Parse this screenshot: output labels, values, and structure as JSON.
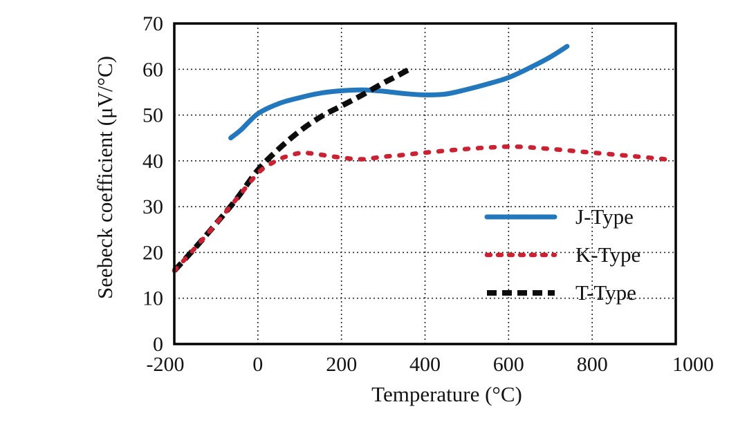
{
  "colors": {
    "background": "#ffffff",
    "frame": "#000000",
    "grid": "#222222",
    "text": "#131313",
    "j_type_blue": "#2377bd",
    "k_type_red": "#cb2233",
    "t_type_black": "#0d0d0d"
  },
  "chart_data": {
    "type": "line",
    "title": "",
    "xlabel": "Temperature (°C)",
    "ylabel": "Seebeck coefficient (μV/°C)",
    "xlim": [
      -200,
      1000
    ],
    "ylim": [
      0,
      70
    ],
    "x_ticks": [
      -200,
      0,
      200,
      400,
      600,
      800,
      1000
    ],
    "y_ticks": [
      0,
      10,
      20,
      30,
      40,
      50,
      60,
      70
    ],
    "grid": true,
    "grid_style": "dotted",
    "legend_position": "inside-right",
    "series": [
      {
        "name": "J-Type",
        "color": "#2377bd",
        "line_style": "solid",
        "points": [
          [
            -65,
            45
          ],
          [
            -40,
            46.8
          ],
          [
            0,
            50.3
          ],
          [
            50,
            52.5
          ],
          [
            100,
            53.8
          ],
          [
            150,
            54.8
          ],
          [
            200,
            55.3
          ],
          [
            250,
            55.5
          ],
          [
            300,
            55.2
          ],
          [
            350,
            54.7
          ],
          [
            400,
            54.4
          ],
          [
            450,
            54.6
          ],
          [
            500,
            55.6
          ],
          [
            550,
            56.8
          ],
          [
            600,
            58.2
          ],
          [
            650,
            60.3
          ],
          [
            700,
            62.7
          ],
          [
            740,
            65
          ]
        ]
      },
      {
        "name": "K-Type",
        "color": "#cb2233",
        "line_style": "dotted",
        "points": [
          [
            -200,
            16
          ],
          [
            -150,
            21
          ],
          [
            -100,
            26.3
          ],
          [
            -50,
            31.8
          ],
          [
            0,
            37.3
          ],
          [
            30,
            39.3
          ],
          [
            60,
            40.7
          ],
          [
            100,
            41.7
          ],
          [
            130,
            41.6
          ],
          [
            200,
            40.7
          ],
          [
            250,
            40.35
          ],
          [
            300,
            40.9
          ],
          [
            350,
            41.3
          ],
          [
            400,
            41.8
          ],
          [
            500,
            42.6
          ],
          [
            570,
            43
          ],
          [
            620,
            43.1
          ],
          [
            700,
            42.6
          ],
          [
            800,
            41.8
          ],
          [
            900,
            41
          ],
          [
            980,
            40.3
          ]
        ]
      },
      {
        "name": "T-Type",
        "color": "#0d0d0d",
        "line_style": "dashed",
        "points": [
          [
            -200,
            16
          ],
          [
            -150,
            21
          ],
          [
            -100,
            26.3
          ],
          [
            -50,
            31.8
          ],
          [
            0,
            38
          ],
          [
            50,
            42.6
          ],
          [
            100,
            46.5
          ],
          [
            150,
            49.6
          ],
          [
            200,
            52
          ],
          [
            250,
            54.4
          ],
          [
            300,
            57
          ],
          [
            330,
            58.4
          ],
          [
            362,
            60
          ]
        ]
      }
    ]
  }
}
